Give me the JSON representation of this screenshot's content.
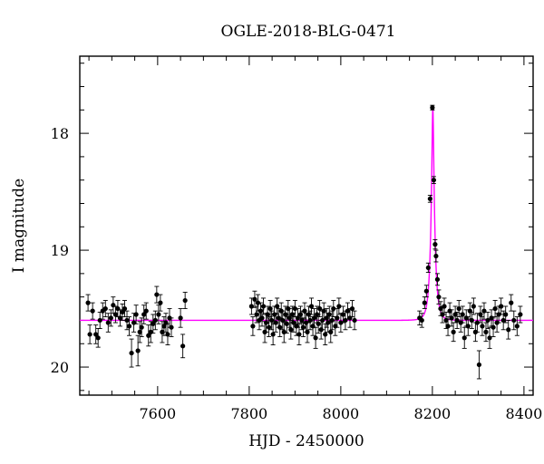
{
  "chart_data": {
    "type": "scatter",
    "title": "OGLE-2018-BLG-0471",
    "xlabel": "HJD - 2450000",
    "ylabel": "I magnitude",
    "xlim": [
      7430,
      8420
    ],
    "ylim": [
      20.24,
      17.34
    ],
    "y_inverted": true,
    "xticks": [
      7600,
      7800,
      8000,
      8200,
      8400
    ],
    "yticks": [
      18,
      19,
      20
    ],
    "grid": false,
    "colors": {
      "points": "#000000",
      "model": "#ff00ff"
    },
    "model": {
      "baseline": 19.6,
      "peak_x": 8201,
      "peak_mag": 17.78,
      "description_type": "point-lens magnification curve"
    },
    "points": [
      {
        "x": 7448,
        "y": 19.45,
        "err": 0.07
      },
      {
        "x": 7452,
        "y": 19.72,
        "err": 0.08
      },
      {
        "x": 7458,
        "y": 19.52,
        "err": 0.07
      },
      {
        "x": 7465,
        "y": 19.72,
        "err": 0.08
      },
      {
        "x": 7470,
        "y": 19.75,
        "err": 0.08
      },
      {
        "x": 7474,
        "y": 19.6,
        "err": 0.07
      },
      {
        "x": 7480,
        "y": 19.52,
        "err": 0.07
      },
      {
        "x": 7486,
        "y": 19.5,
        "err": 0.07
      },
      {
        "x": 7492,
        "y": 19.62,
        "err": 0.08
      },
      {
        "x": 7498,
        "y": 19.58,
        "err": 0.07
      },
      {
        "x": 7503,
        "y": 19.47,
        "err": 0.07
      },
      {
        "x": 7508,
        "y": 19.55,
        "err": 0.07
      },
      {
        "x": 7513,
        "y": 19.5,
        "err": 0.07
      },
      {
        "x": 7518,
        "y": 19.58,
        "err": 0.07
      },
      {
        "x": 7523,
        "y": 19.53,
        "err": 0.07
      },
      {
        "x": 7528,
        "y": 19.5,
        "err": 0.07
      },
      {
        "x": 7533,
        "y": 19.6,
        "err": 0.08
      },
      {
        "x": 7538,
        "y": 19.65,
        "err": 0.08
      },
      {
        "x": 7543,
        "y": 19.88,
        "err": 0.12
      },
      {
        "x": 7548,
        "y": 19.62,
        "err": 0.08
      },
      {
        "x": 7553,
        "y": 19.55,
        "err": 0.08
      },
      {
        "x": 7557,
        "y": 19.86,
        "err": 0.13
      },
      {
        "x": 7561,
        "y": 19.7,
        "err": 0.09
      },
      {
        "x": 7565,
        "y": 19.66,
        "err": 0.08
      },
      {
        "x": 7570,
        "y": 19.55,
        "err": 0.08
      },
      {
        "x": 7575,
        "y": 19.52,
        "err": 0.07
      },
      {
        "x": 7580,
        "y": 19.73,
        "err": 0.09
      },
      {
        "x": 7585,
        "y": 19.7,
        "err": 0.09
      },
      {
        "x": 7590,
        "y": 19.63,
        "err": 0.08
      },
      {
        "x": 7595,
        "y": 19.6,
        "err": 0.08
      },
      {
        "x": 7598,
        "y": 19.38,
        "err": 0.07
      },
      {
        "x": 7602,
        "y": 19.55,
        "err": 0.08
      },
      {
        "x": 7606,
        "y": 19.45,
        "err": 0.07
      },
      {
        "x": 7610,
        "y": 19.7,
        "err": 0.09
      },
      {
        "x": 7614,
        "y": 19.65,
        "err": 0.08
      },
      {
        "x": 7618,
        "y": 19.62,
        "err": 0.08
      },
      {
        "x": 7622,
        "y": 19.72,
        "err": 0.09
      },
      {
        "x": 7626,
        "y": 19.58,
        "err": 0.08
      },
      {
        "x": 7630,
        "y": 19.66,
        "err": 0.08
      },
      {
        "x": 7650,
        "y": 19.58,
        "err": 0.08
      },
      {
        "x": 7655,
        "y": 19.82,
        "err": 0.1
      },
      {
        "x": 7660,
        "y": 19.43,
        "err": 0.07
      },
      {
        "x": 7805,
        "y": 19.48,
        "err": 0.07
      },
      {
        "x": 7808,
        "y": 19.65,
        "err": 0.08
      },
      {
        "x": 7812,
        "y": 19.42,
        "err": 0.07
      },
      {
        "x": 7816,
        "y": 19.55,
        "err": 0.07
      },
      {
        "x": 7819,
        "y": 19.45,
        "err": 0.07
      },
      {
        "x": 7822,
        "y": 19.6,
        "err": 0.08
      },
      {
        "x": 7825,
        "y": 19.52,
        "err": 0.07
      },
      {
        "x": 7828,
        "y": 19.58,
        "err": 0.07
      },
      {
        "x": 7831,
        "y": 19.48,
        "err": 0.07
      },
      {
        "x": 7834,
        "y": 19.7,
        "err": 0.09
      },
      {
        "x": 7837,
        "y": 19.62,
        "err": 0.08
      },
      {
        "x": 7840,
        "y": 19.55,
        "err": 0.07
      },
      {
        "x": 7843,
        "y": 19.66,
        "err": 0.08
      },
      {
        "x": 7846,
        "y": 19.5,
        "err": 0.07
      },
      {
        "x": 7849,
        "y": 19.6,
        "err": 0.08
      },
      {
        "x": 7852,
        "y": 19.72,
        "err": 0.09
      },
      {
        "x": 7855,
        "y": 19.55,
        "err": 0.07
      },
      {
        "x": 7858,
        "y": 19.62,
        "err": 0.08
      },
      {
        "x": 7861,
        "y": 19.48,
        "err": 0.07
      },
      {
        "x": 7864,
        "y": 19.58,
        "err": 0.08
      },
      {
        "x": 7867,
        "y": 19.66,
        "err": 0.08
      },
      {
        "x": 7870,
        "y": 19.52,
        "err": 0.07
      },
      {
        "x": 7873,
        "y": 19.6,
        "err": 0.08
      },
      {
        "x": 7876,
        "y": 19.7,
        "err": 0.09
      },
      {
        "x": 7879,
        "y": 19.55,
        "err": 0.07
      },
      {
        "x": 7882,
        "y": 19.63,
        "err": 0.08
      },
      {
        "x": 7885,
        "y": 19.5,
        "err": 0.07
      },
      {
        "x": 7888,
        "y": 19.58,
        "err": 0.08
      },
      {
        "x": 7891,
        "y": 19.68,
        "err": 0.08
      },
      {
        "x": 7894,
        "y": 19.55,
        "err": 0.07
      },
      {
        "x": 7897,
        "y": 19.62,
        "err": 0.08
      },
      {
        "x": 7900,
        "y": 19.5,
        "err": 0.07
      },
      {
        "x": 7903,
        "y": 19.65,
        "err": 0.08
      },
      {
        "x": 7906,
        "y": 19.58,
        "err": 0.08
      },
      {
        "x": 7909,
        "y": 19.72,
        "err": 0.09
      },
      {
        "x": 7912,
        "y": 19.55,
        "err": 0.07
      },
      {
        "x": 7915,
        "y": 19.6,
        "err": 0.08
      },
      {
        "x": 7918,
        "y": 19.66,
        "err": 0.08
      },
      {
        "x": 7921,
        "y": 19.52,
        "err": 0.07
      },
      {
        "x": 7924,
        "y": 19.62,
        "err": 0.08
      },
      {
        "x": 7927,
        "y": 19.7,
        "err": 0.09
      },
      {
        "x": 7930,
        "y": 19.55,
        "err": 0.07
      },
      {
        "x": 7933,
        "y": 19.6,
        "err": 0.08
      },
      {
        "x": 7936,
        "y": 19.48,
        "err": 0.07
      },
      {
        "x": 7939,
        "y": 19.65,
        "err": 0.08
      },
      {
        "x": 7942,
        "y": 19.58,
        "err": 0.08
      },
      {
        "x": 7945,
        "y": 19.75,
        "err": 0.09
      },
      {
        "x": 7948,
        "y": 19.55,
        "err": 0.07
      },
      {
        "x": 7951,
        "y": 19.63,
        "err": 0.08
      },
      {
        "x": 7954,
        "y": 19.5,
        "err": 0.07
      },
      {
        "x": 7957,
        "y": 19.68,
        "err": 0.08
      },
      {
        "x": 7960,
        "y": 19.6,
        "err": 0.08
      },
      {
        "x": 7963,
        "y": 19.52,
        "err": 0.07
      },
      {
        "x": 7966,
        "y": 19.72,
        "err": 0.09
      },
      {
        "x": 7969,
        "y": 19.58,
        "err": 0.08
      },
      {
        "x": 7972,
        "y": 19.62,
        "err": 0.08
      },
      {
        "x": 7975,
        "y": 19.55,
        "err": 0.07
      },
      {
        "x": 7978,
        "y": 19.7,
        "err": 0.09
      },
      {
        "x": 7981,
        "y": 19.6,
        "err": 0.08
      },
      {
        "x": 7984,
        "y": 19.5,
        "err": 0.07
      },
      {
        "x": 7988,
        "y": 19.65,
        "err": 0.08
      },
      {
        "x": 7992,
        "y": 19.58,
        "err": 0.08
      },
      {
        "x": 7996,
        "y": 19.48,
        "err": 0.07
      },
      {
        "x": 8000,
        "y": 19.62,
        "err": 0.08
      },
      {
        "x": 8005,
        "y": 19.55,
        "err": 0.07
      },
      {
        "x": 8010,
        "y": 19.6,
        "err": 0.08
      },
      {
        "x": 8015,
        "y": 19.52,
        "err": 0.07
      },
      {
        "x": 8020,
        "y": 19.58,
        "err": 0.08
      },
      {
        "x": 8025,
        "y": 19.5,
        "err": 0.07
      },
      {
        "x": 8030,
        "y": 19.6,
        "err": 0.08
      },
      {
        "x": 8172,
        "y": 19.58,
        "err": 0.06
      },
      {
        "x": 8177,
        "y": 19.6,
        "err": 0.06
      },
      {
        "x": 8183,
        "y": 19.45,
        "err": 0.05
      },
      {
        "x": 8187,
        "y": 19.35,
        "err": 0.05
      },
      {
        "x": 8191,
        "y": 19.15,
        "err": 0.04
      },
      {
        "x": 8195,
        "y": 18.56,
        "err": 0.03
      },
      {
        "x": 8200,
        "y": 17.78,
        "err": 0.02
      },
      {
        "x": 8203,
        "y": 18.4,
        "err": 0.03
      },
      {
        "x": 8206,
        "y": 18.95,
        "err": 0.04
      },
      {
        "x": 8208,
        "y": 19.05,
        "err": 0.05
      },
      {
        "x": 8211,
        "y": 19.25,
        "err": 0.05
      },
      {
        "x": 8214,
        "y": 19.4,
        "err": 0.06
      },
      {
        "x": 8218,
        "y": 19.5,
        "err": 0.06
      },
      {
        "x": 8222,
        "y": 19.55,
        "err": 0.07
      },
      {
        "x": 8226,
        "y": 19.48,
        "err": 0.07
      },
      {
        "x": 8230,
        "y": 19.6,
        "err": 0.07
      },
      {
        "x": 8234,
        "y": 19.65,
        "err": 0.08
      },
      {
        "x": 8238,
        "y": 19.52,
        "err": 0.07
      },
      {
        "x": 8242,
        "y": 19.58,
        "err": 0.07
      },
      {
        "x": 8246,
        "y": 19.7,
        "err": 0.08
      },
      {
        "x": 8250,
        "y": 19.55,
        "err": 0.07
      },
      {
        "x": 8254,
        "y": 19.6,
        "err": 0.07
      },
      {
        "x": 8258,
        "y": 19.5,
        "err": 0.07
      },
      {
        "x": 8262,
        "y": 19.62,
        "err": 0.08
      },
      {
        "x": 8266,
        "y": 19.55,
        "err": 0.07
      },
      {
        "x": 8270,
        "y": 19.75,
        "err": 0.09
      },
      {
        "x": 8274,
        "y": 19.58,
        "err": 0.07
      },
      {
        "x": 8278,
        "y": 19.65,
        "err": 0.08
      },
      {
        "x": 8282,
        "y": 19.52,
        "err": 0.07
      },
      {
        "x": 8286,
        "y": 19.6,
        "err": 0.07
      },
      {
        "x": 8290,
        "y": 19.48,
        "err": 0.07
      },
      {
        "x": 8294,
        "y": 19.7,
        "err": 0.08
      },
      {
        "x": 8298,
        "y": 19.62,
        "err": 0.08
      },
      {
        "x": 8302,
        "y": 19.98,
        "err": 0.12
      },
      {
        "x": 8305,
        "y": 19.55,
        "err": 0.07
      },
      {
        "x": 8309,
        "y": 19.65,
        "err": 0.08
      },
      {
        "x": 8313,
        "y": 19.52,
        "err": 0.07
      },
      {
        "x": 8317,
        "y": 19.7,
        "err": 0.08
      },
      {
        "x": 8321,
        "y": 19.6,
        "err": 0.07
      },
      {
        "x": 8325,
        "y": 19.75,
        "err": 0.09
      },
      {
        "x": 8329,
        "y": 19.58,
        "err": 0.07
      },
      {
        "x": 8333,
        "y": 19.66,
        "err": 0.08
      },
      {
        "x": 8337,
        "y": 19.5,
        "err": 0.07
      },
      {
        "x": 8341,
        "y": 19.62,
        "err": 0.08
      },
      {
        "x": 8345,
        "y": 19.55,
        "err": 0.07
      },
      {
        "x": 8350,
        "y": 19.48,
        "err": 0.07
      },
      {
        "x": 8355,
        "y": 19.6,
        "err": 0.08
      },
      {
        "x": 8360,
        "y": 19.55,
        "err": 0.07
      },
      {
        "x": 8366,
        "y": 19.68,
        "err": 0.08
      },
      {
        "x": 8372,
        "y": 19.45,
        "err": 0.07
      },
      {
        "x": 8378,
        "y": 19.6,
        "err": 0.08
      },
      {
        "x": 8385,
        "y": 19.65,
        "err": 0.08
      },
      {
        "x": 8392,
        "y": 19.55,
        "err": 0.07
      }
    ]
  }
}
